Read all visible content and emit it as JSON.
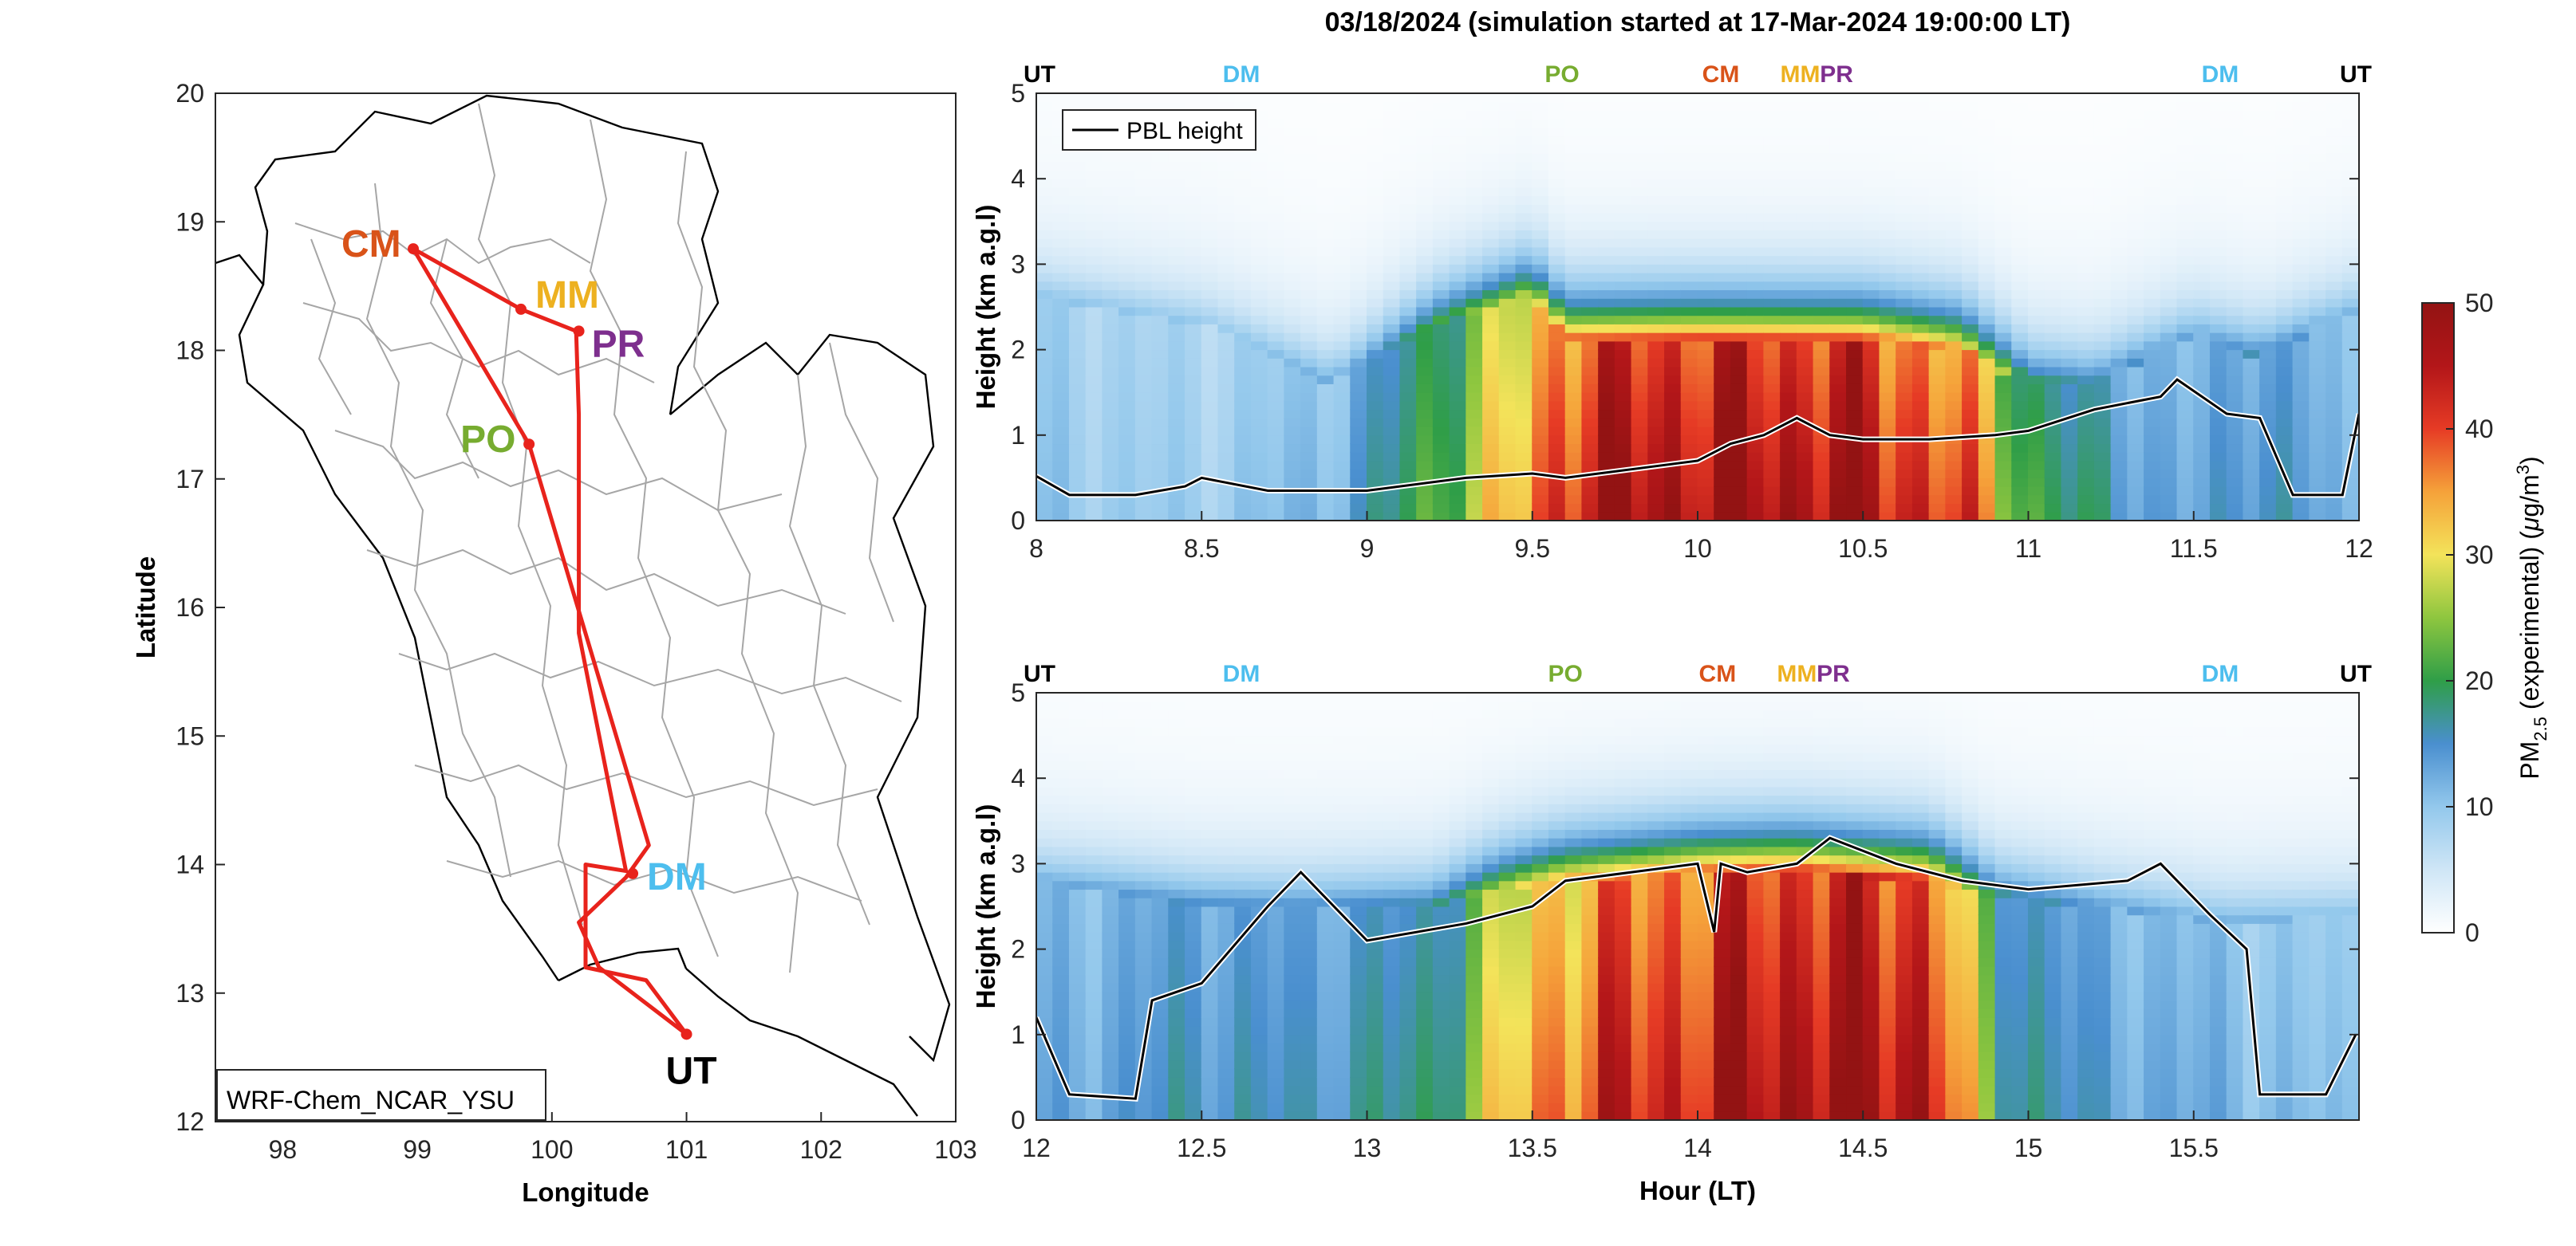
{
  "title": "03/18/2024 (simulation started at 17-Mar-2024 19:00:00 LT)",
  "colors": {
    "route": "#e8231c",
    "CM": "#d95319",
    "MM": "#edb120",
    "PR": "#7e2f8e",
    "PO": "#77ac30",
    "DM": "#4dbeee",
    "UT": "#000000"
  },
  "chart_data": [
    {
      "type": "map",
      "xlabel": "Longitude",
      "ylabel": "Latitude",
      "xlim": [
        97.5,
        103
      ],
      "ylim": [
        12,
        20
      ],
      "xticks": [
        "98",
        "99",
        "100",
        "101",
        "102",
        "103"
      ],
      "yticks": [
        "12",
        "13",
        "14",
        "15",
        "16",
        "17",
        "18",
        "19",
        "20"
      ],
      "model_label": "WRF-Chem_NCAR_YSU",
      "sites": [
        {
          "id": "CM",
          "lon": 98.97,
          "lat": 18.79
        },
        {
          "id": "MM",
          "lon": 99.77,
          "lat": 18.32
        },
        {
          "id": "PR",
          "lon": 100.2,
          "lat": 18.15
        },
        {
          "id": "PO",
          "lon": 99.83,
          "lat": 17.27
        },
        {
          "id": "DM",
          "lon": 100.6,
          "lat": 13.93
        },
        {
          "id": "UT",
          "lon": 101.0,
          "lat": 12.68
        }
      ],
      "route": [
        [
          101.0,
          12.68
        ],
        [
          100.7,
          13.1
        ],
        [
          100.25,
          13.2
        ],
        [
          100.25,
          14.0
        ],
        [
          100.55,
          13.95
        ],
        [
          100.2,
          15.8
        ],
        [
          100.2,
          17.5
        ],
        [
          100.18,
          18.15
        ],
        [
          99.77,
          18.32
        ],
        [
          98.97,
          18.79
        ],
        [
          99.83,
          17.27
        ],
        [
          100.72,
          14.15
        ],
        [
          100.55,
          13.9
        ],
        [
          100.2,
          13.55
        ],
        [
          100.35,
          13.2
        ],
        [
          101.0,
          12.68
        ]
      ]
    },
    {
      "type": "heatmap",
      "ylabel": "Height (km a.g.l)",
      "xlim": [
        8,
        12
      ],
      "ylim": [
        0,
        5
      ],
      "xticks": [
        "8",
        "8.5",
        "9",
        "9.5",
        "10",
        "10.5",
        "11",
        "11.5",
        "12"
      ],
      "yticks": [
        "0",
        "1",
        "2",
        "3",
        "4",
        "5"
      ],
      "legend": "PBL height",
      "site_markers": [
        {
          "id": "UT",
          "x": 8.0
        },
        {
          "id": "DM",
          "x": 8.62
        },
        {
          "id": "PO",
          "x": 9.59
        },
        {
          "id": "CM",
          "x": 10.07
        },
        {
          "id": "MM",
          "x": 10.31
        },
        {
          "id": "PR",
          "x": 10.42
        },
        {
          "id": "DM",
          "x": 11.58
        },
        {
          "id": "UT",
          "x": 12.0
        }
      ],
      "pbl_height": [
        [
          8.0,
          0.52
        ],
        [
          8.1,
          0.3
        ],
        [
          8.3,
          0.3
        ],
        [
          8.45,
          0.4
        ],
        [
          8.5,
          0.5
        ],
        [
          8.7,
          0.35
        ],
        [
          9.0,
          0.35
        ],
        [
          9.3,
          0.5
        ],
        [
          9.5,
          0.55
        ],
        [
          9.6,
          0.5
        ],
        [
          9.8,
          0.6
        ],
        [
          10.0,
          0.7
        ],
        [
          10.1,
          0.9
        ],
        [
          10.2,
          1.0
        ],
        [
          10.3,
          1.2
        ],
        [
          10.4,
          1.0
        ],
        [
          10.5,
          0.95
        ],
        [
          10.7,
          0.95
        ],
        [
          10.9,
          1.0
        ],
        [
          11.0,
          1.05
        ],
        [
          11.2,
          1.3
        ],
        [
          11.4,
          1.45
        ],
        [
          11.45,
          1.65
        ],
        [
          11.6,
          1.25
        ],
        [
          11.7,
          1.2
        ],
        [
          11.8,
          0.3
        ],
        [
          11.95,
          0.3
        ],
        [
          12.0,
          1.25
        ]
      ],
      "pm25_profile": [
        [
          8.0,
          10,
          2.6
        ],
        [
          8.5,
          9,
          2.3
        ],
        [
          8.9,
          12,
          1.6
        ],
        [
          9.2,
          22,
          2.3
        ],
        [
          9.5,
          35,
          2.6
        ],
        [
          9.6,
          46,
          2.1
        ],
        [
          10.0,
          49,
          2.1
        ],
        [
          10.5,
          48,
          2.1
        ],
        [
          10.8,
          40,
          2.0
        ],
        [
          11.0,
          22,
          1.6
        ],
        [
          11.2,
          17,
          1.6
        ],
        [
          11.5,
          12,
          2.2
        ],
        [
          11.7,
          17,
          1.9
        ],
        [
          12.0,
          10,
          2.5
        ]
      ]
    },
    {
      "type": "heatmap",
      "xlabel": "Hour (LT)",
      "ylabel": "Height (km a.g.l)",
      "xlim": [
        12,
        16
      ],
      "ylim": [
        0,
        5
      ],
      "xticks": [
        "12",
        "12.5",
        "13",
        "13.5",
        "14",
        "14.5",
        "15",
        "15.5"
      ],
      "yticks": [
        "0",
        "1",
        "2",
        "3",
        "4",
        "5"
      ],
      "site_markers": [
        {
          "id": "UT",
          "x": 12.0
        },
        {
          "id": "DM",
          "x": 12.62
        },
        {
          "id": "PO",
          "x": 13.6
        },
        {
          "id": "CM",
          "x": 14.06
        },
        {
          "id": "MM",
          "x": 14.3
        },
        {
          "id": "PR",
          "x": 14.41
        },
        {
          "id": "DM",
          "x": 15.58
        },
        {
          "id": "UT",
          "x": 15.99
        }
      ],
      "pbl_height": [
        [
          12.0,
          1.2
        ],
        [
          12.1,
          0.3
        ],
        [
          12.3,
          0.25
        ],
        [
          12.35,
          1.4
        ],
        [
          12.5,
          1.6
        ],
        [
          12.7,
          2.5
        ],
        [
          12.8,
          2.9
        ],
        [
          12.9,
          2.5
        ],
        [
          13.0,
          2.1
        ],
        [
          13.3,
          2.3
        ],
        [
          13.5,
          2.5
        ],
        [
          13.6,
          2.8
        ],
        [
          13.8,
          2.9
        ],
        [
          14.0,
          3.0
        ],
        [
          14.05,
          2.2
        ],
        [
          14.07,
          3.0
        ],
        [
          14.15,
          2.9
        ],
        [
          14.3,
          3.0
        ],
        [
          14.4,
          3.3
        ],
        [
          14.6,
          3.0
        ],
        [
          14.8,
          2.8
        ],
        [
          15.0,
          2.7
        ],
        [
          15.3,
          2.8
        ],
        [
          15.4,
          3.0
        ],
        [
          15.55,
          2.4
        ],
        [
          15.66,
          2.0
        ],
        [
          15.7,
          0.3
        ],
        [
          15.9,
          0.3
        ],
        [
          15.99,
          1.0
        ]
      ],
      "pm25_profile": [
        [
          12.0,
          12,
          2.8
        ],
        [
          12.5,
          16,
          2.5
        ],
        [
          12.8,
          15,
          2.5
        ],
        [
          13.2,
          18,
          2.5
        ],
        [
          13.4,
          30,
          2.7
        ],
        [
          13.6,
          40,
          2.8
        ],
        [
          14.0,
          45,
          2.9
        ],
        [
          14.3,
          49,
          2.9
        ],
        [
          14.7,
          48,
          2.8
        ],
        [
          14.9,
          20,
          2.6
        ],
        [
          15.2,
          14,
          2.5
        ],
        [
          15.6,
          12,
          2.3
        ],
        [
          16.0,
          10,
          2.4
        ]
      ]
    },
    {
      "type": "colorbar",
      "label": "PM2.5 (experimental) (μg/m3)",
      "range": [
        0,
        50
      ],
      "ticks": [
        "0",
        "10",
        "20",
        "30",
        "40",
        "50"
      ],
      "colormap": [
        "#ffffff",
        "#cfe6f6",
        "#93c8ec",
        "#4a8fcf",
        "#2f9e48",
        "#8ec63f",
        "#f3e35a",
        "#f5a23a",
        "#e63b25",
        "#b31619",
        "#931313"
      ]
    }
  ]
}
